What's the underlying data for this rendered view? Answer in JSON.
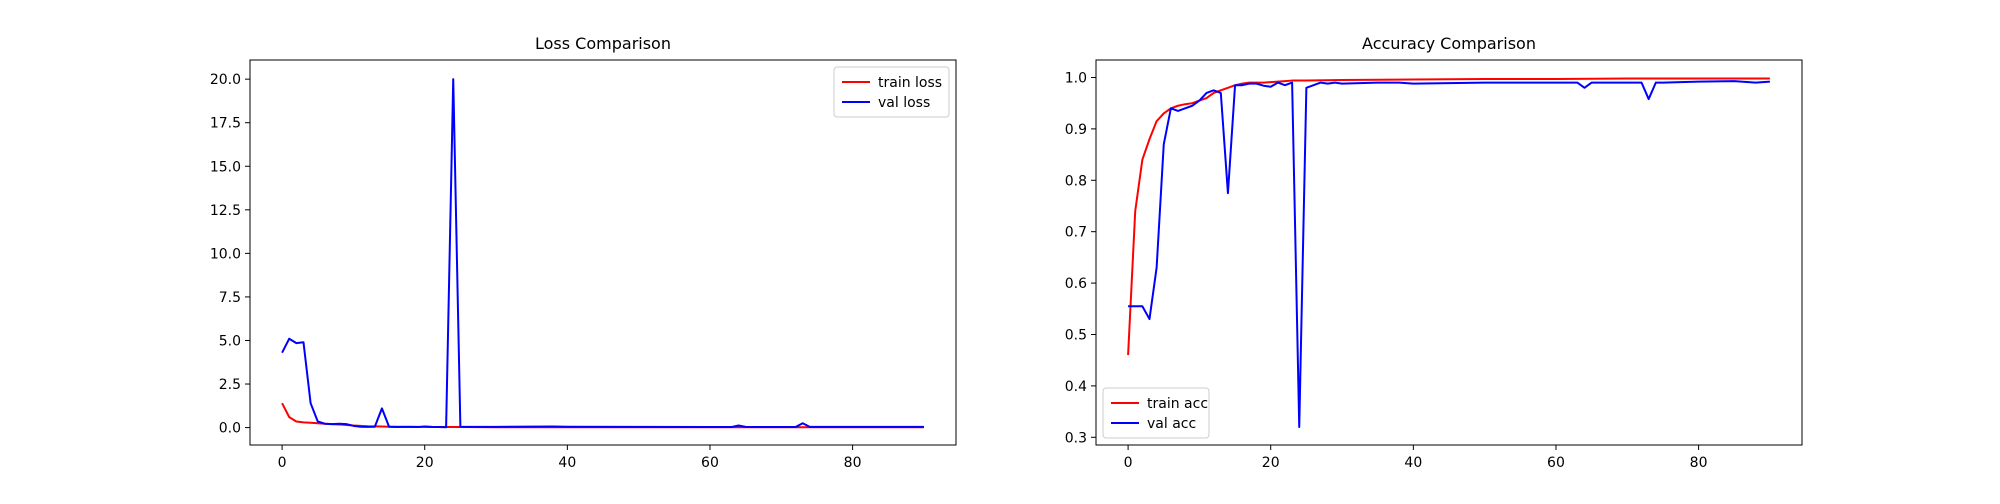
{
  "colors": {
    "train": "#ff0000",
    "val": "#0000ff"
  },
  "chart_data": [
    {
      "type": "line",
      "title": "Loss Comparison",
      "xlabel": "",
      "ylabel": "",
      "xlim": [
        -4.5,
        94.5
      ],
      "ylim": [
        -1.0,
        21.1
      ],
      "xticks": [
        0,
        20,
        40,
        60,
        80
      ],
      "yticks": [
        0.0,
        2.5,
        5.0,
        7.5,
        10.0,
        12.5,
        15.0,
        17.5,
        20.0
      ],
      "ytick_labels": [
        "0.0",
        "2.5",
        "5.0",
        "7.5",
        "10.0",
        "12.5",
        "15.0",
        "17.5",
        "20.0"
      ],
      "legend": "top-right",
      "grid": false,
      "series": [
        {
          "name": "train loss",
          "color": "#ff0000",
          "x": [
            0,
            1,
            2,
            3,
            4,
            5,
            6,
            7,
            8,
            9,
            10,
            11,
            12,
            13,
            14,
            15,
            16,
            17,
            18,
            19,
            20,
            21,
            22,
            23,
            24,
            25,
            30,
            40,
            50,
            60,
            70,
            80,
            90
          ],
          "y": [
            1.4,
            0.6,
            0.35,
            0.3,
            0.28,
            0.25,
            0.22,
            0.2,
            0.18,
            0.15,
            0.12,
            0.1,
            0.08,
            0.07,
            0.06,
            0.05,
            0.05,
            0.04,
            0.04,
            0.04,
            0.04,
            0.03,
            0.03,
            0.03,
            0.03,
            0.03,
            0.02,
            0.02,
            0.02,
            0.02,
            0.02,
            0.02,
            0.02
          ]
        },
        {
          "name": "val loss",
          "color": "#0000ff",
          "x": [
            0,
            1,
            2,
            3,
            4,
            5,
            6,
            7,
            8,
            9,
            10,
            11,
            12,
            13,
            14,
            15,
            16,
            17,
            18,
            19,
            20,
            21,
            22,
            23,
            24,
            25,
            26,
            30,
            38,
            40,
            50,
            60,
            63,
            64,
            65,
            70,
            72,
            73,
            74,
            75,
            80,
            90
          ],
          "y": [
            4.3,
            5.1,
            4.85,
            4.9,
            1.4,
            0.35,
            0.22,
            0.2,
            0.22,
            0.2,
            0.1,
            0.05,
            0.04,
            0.05,
            1.1,
            0.05,
            0.03,
            0.04,
            0.04,
            0.03,
            0.06,
            0.04,
            0.03,
            0.02,
            20.0,
            0.05,
            0.04,
            0.04,
            0.06,
            0.05,
            0.04,
            0.03,
            0.03,
            0.12,
            0.04,
            0.03,
            0.03,
            0.25,
            0.04,
            0.04,
            0.04,
            0.04
          ]
        }
      ]
    },
    {
      "type": "line",
      "title": "Accuracy Comparison",
      "xlabel": "",
      "ylabel": "",
      "xlim": [
        -4.5,
        94.5
      ],
      "ylim": [
        0.285,
        1.034
      ],
      "xticks": [
        0,
        20,
        40,
        60,
        80
      ],
      "yticks": [
        0.3,
        0.4,
        0.5,
        0.6,
        0.7,
        0.8,
        0.9,
        1.0
      ],
      "ytick_labels": [
        "0.3",
        "0.4",
        "0.5",
        "0.6",
        "0.7",
        "0.8",
        "0.9",
        "1.0"
      ],
      "legend": "bottom-left",
      "grid": false,
      "series": [
        {
          "name": "train acc",
          "color": "#ff0000",
          "x": [
            0,
            1,
            2,
            3,
            4,
            5,
            6,
            7,
            8,
            9,
            10,
            11,
            12,
            13,
            14,
            15,
            16,
            17,
            18,
            19,
            20,
            21,
            22,
            23,
            24,
            25,
            30,
            40,
            50,
            60,
            70,
            80,
            90
          ],
          "y": [
            0.46,
            0.74,
            0.84,
            0.88,
            0.915,
            0.93,
            0.94,
            0.945,
            0.948,
            0.95,
            0.955,
            0.96,
            0.97,
            0.975,
            0.98,
            0.985,
            0.988,
            0.99,
            0.99,
            0.99,
            0.991,
            0.992,
            0.993,
            0.994,
            0.994,
            0.994,
            0.995,
            0.996,
            0.997,
            0.997,
            0.998,
            0.998,
            0.998
          ]
        },
        {
          "name": "val acc",
          "color": "#0000ff",
          "x": [
            0,
            1,
            2,
            3,
            4,
            5,
            6,
            7,
            8,
            9,
            10,
            11,
            12,
            13,
            14,
            15,
            16,
            17,
            18,
            19,
            20,
            21,
            22,
            23,
            24,
            25,
            26,
            27,
            28,
            29,
            30,
            35,
            38,
            40,
            50,
            60,
            63,
            64,
            65,
            68,
            70,
            72,
            73,
            74,
            75,
            80,
            85,
            88,
            90
          ],
          "y": [
            0.555,
            0.555,
            0.555,
            0.53,
            0.63,
            0.87,
            0.94,
            0.935,
            0.94,
            0.945,
            0.955,
            0.97,
            0.975,
            0.97,
            0.775,
            0.985,
            0.985,
            0.988,
            0.988,
            0.984,
            0.982,
            0.99,
            0.985,
            0.99,
            0.32,
            0.98,
            0.985,
            0.99,
            0.988,
            0.99,
            0.988,
            0.99,
            0.99,
            0.988,
            0.99,
            0.99,
            0.99,
            0.98,
            0.99,
            0.99,
            0.99,
            0.99,
            0.958,
            0.99,
            0.99,
            0.992,
            0.993,
            0.99,
            0.992
          ]
        }
      ]
    }
  ]
}
